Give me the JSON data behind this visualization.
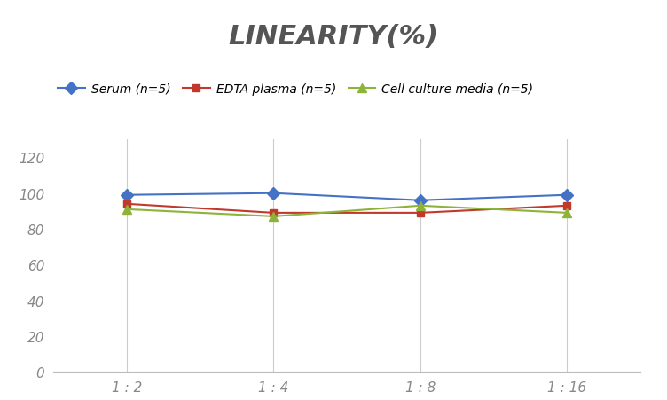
{
  "title": "LINEARITY(%)",
  "x_labels": [
    "1 : 2",
    "1 : 4",
    "1 : 8",
    "1 : 16"
  ],
  "x_positions": [
    0,
    1,
    2,
    3
  ],
  "series": [
    {
      "label": "Serum (n=5)",
      "values": [
        99,
        100,
        96,
        99
      ],
      "color": "#4472C4",
      "marker": "D",
      "markersize": 7,
      "linewidth": 1.5
    },
    {
      "label": "EDTA plasma (n=5)",
      "values": [
        94,
        89,
        89,
        93
      ],
      "color": "#C0392B",
      "marker": "s",
      "markersize": 6,
      "linewidth": 1.5
    },
    {
      "label": "Cell culture media (n=5)",
      "values": [
        91,
        87,
        93,
        89
      ],
      "color": "#8DB33A",
      "marker": "^",
      "markersize": 7,
      "linewidth": 1.5
    }
  ],
  "ylim": [
    0,
    130
  ],
  "yticks": [
    0,
    20,
    40,
    60,
    80,
    100,
    120
  ],
  "background_color": "#FFFFFF",
  "grid_color": "#CCCCCC",
  "title_fontsize": 22,
  "title_color": "#555555",
  "legend_fontsize": 10,
  "tick_fontsize": 11,
  "tick_color": "#888888"
}
